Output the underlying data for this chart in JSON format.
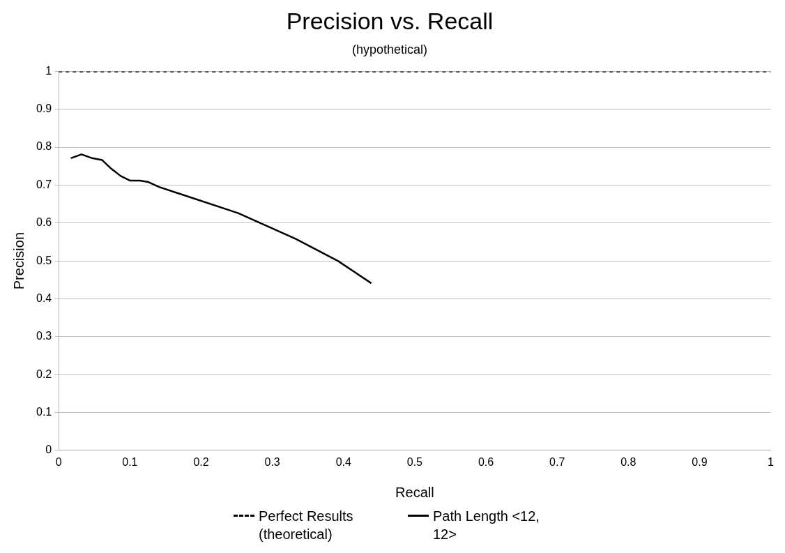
{
  "chart_data": {
    "type": "line",
    "title": "Precision vs. Recall",
    "subtitle": "(hypothetical)",
    "xlabel": "Recall",
    "ylabel": "Precision",
    "xlim": [
      0,
      1
    ],
    "xticks": [
      0,
      0.1,
      0.2,
      0.3,
      0.4,
      0.5,
      0.6,
      0.7,
      0.8,
      0.9,
      1
    ],
    "ylim": [
      0,
      1
    ],
    "yticks": [
      0,
      0.1,
      0.2,
      0.3,
      0.4,
      0.5,
      0.6,
      0.7,
      0.8,
      0.9,
      1
    ],
    "grid": "y",
    "legend": "bottom",
    "marker": "none",
    "series": [
      {
        "name": "Perfect Results (theoretical)",
        "color": "#000000",
        "line_style": "dashed",
        "x": [
          0,
          1
        ],
        "values": [
          1,
          1
        ]
      },
      {
        "name": "Path Length <12, 12>",
        "color": "#000000",
        "line_style": "solid",
        "x": [
          0.017,
          0.032,
          0.047,
          0.061,
          0.074,
          0.087,
          0.1,
          0.114,
          0.126,
          0.141,
          0.252,
          0.333,
          0.392,
          0.439
        ],
        "values": [
          0.771,
          0.781,
          0.771,
          0.766,
          0.743,
          0.724,
          0.712,
          0.712,
          0.708,
          0.695,
          0.626,
          0.558,
          0.5,
          0.441
        ]
      }
    ]
  }
}
